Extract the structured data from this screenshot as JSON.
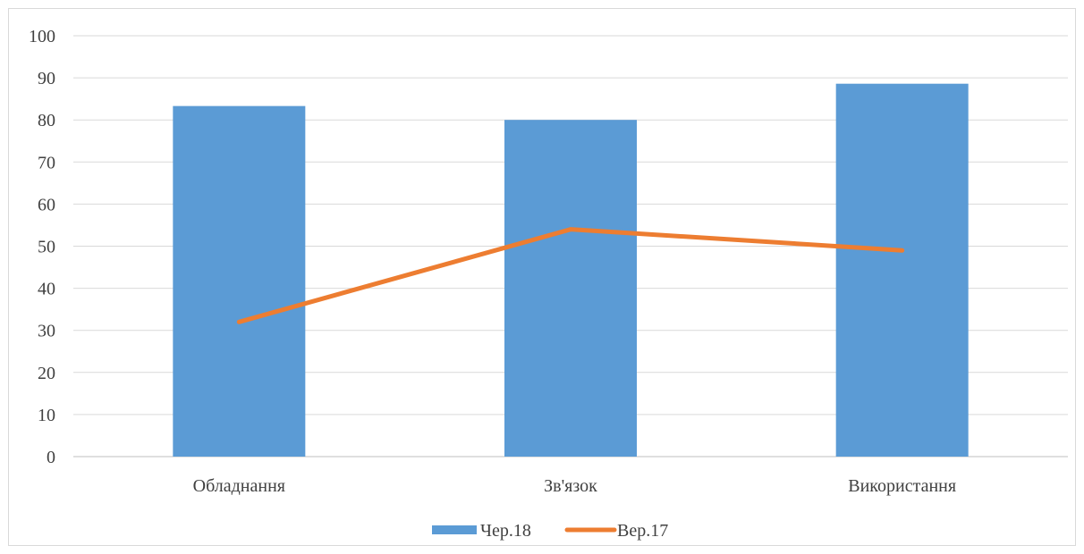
{
  "chart_data": {
    "type": "bar",
    "categories": [
      "Обладнання",
      "Зв'язок",
      "Використання"
    ],
    "ylim": [
      0,
      100
    ],
    "yticks": [
      0,
      10,
      20,
      30,
      40,
      50,
      60,
      70,
      80,
      90,
      100
    ],
    "grid": true,
    "legend_position": "bottom",
    "series": [
      {
        "name": "Чер.18",
        "kind": "bar",
        "color": "#5b9bd5",
        "values": [
          83.3,
          80,
          88.6
        ]
      },
      {
        "name": "Вер.17",
        "kind": "line",
        "color": "#ed7d31",
        "values": [
          32,
          54,
          49
        ]
      }
    ]
  }
}
